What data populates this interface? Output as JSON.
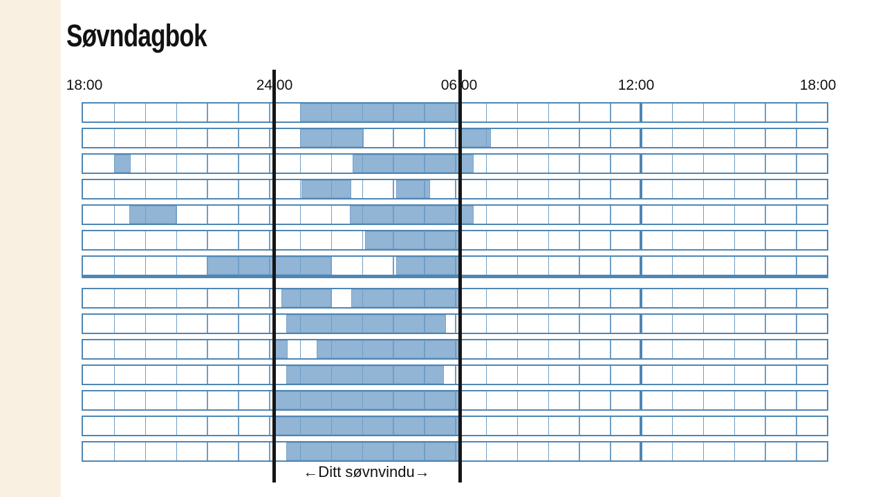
{
  "page": {
    "title": "Søvndagbok",
    "background_color": "#ffffff",
    "left_strip_color": "#faf0e2"
  },
  "chart_data": {
    "type": "heatmap",
    "title": "Søvndagbok",
    "description": "Sleep diary: 14 nights, each row spans 24 hours from 18:00 to 18:00; filled segments = sleep",
    "x_axis": {
      "tick_labels": [
        "18:00",
        "24:00",
        "06:00",
        "12:00",
        "18:00"
      ],
      "tick_hours": [
        0,
        6,
        12,
        18,
        24
      ],
      "hours_total": 24,
      "grid_step_hours": 1
    },
    "rows": [
      {
        "night": 1,
        "sleep_segments_hours_from_1800": [
          [
            7.0,
            12.15
          ]
        ]
      },
      {
        "night": 2,
        "sleep_segments_hours_from_1800": [
          [
            7.0,
            9.05
          ],
          [
            12.15,
            13.15
          ]
        ]
      },
      {
        "night": 3,
        "sleep_segments_hours_from_1800": [
          [
            1.0,
            1.55
          ],
          [
            8.7,
            12.6
          ]
        ]
      },
      {
        "night": 4,
        "sleep_segments_hours_from_1800": [
          [
            7.05,
            8.65
          ],
          [
            10.1,
            11.2
          ]
        ]
      },
      {
        "night": 5,
        "sleep_segments_hours_from_1800": [
          [
            1.5,
            3.0
          ],
          [
            8.6,
            12.6
          ]
        ]
      },
      {
        "night": 6,
        "sleep_segments_hours_from_1800": [
          [
            9.1,
            12.15
          ]
        ]
      },
      {
        "night": 7,
        "sleep_segments_hours_from_1800": [
          [
            4.0,
            8.0
          ],
          [
            10.1,
            12.15
          ]
        ]
      },
      {
        "night": 8,
        "sleep_segments_hours_from_1800": [
          [
            6.4,
            8.0
          ],
          [
            8.65,
            12.15
          ]
        ]
      },
      {
        "night": 9,
        "sleep_segments_hours_from_1800": [
          [
            6.55,
            11.7
          ]
        ]
      },
      {
        "night": 10,
        "sleep_segments_hours_from_1800": [
          [
            6.2,
            6.6
          ],
          [
            7.55,
            12.15
          ]
        ]
      },
      {
        "night": 11,
        "sleep_segments_hours_from_1800": [
          [
            6.55,
            11.65
          ]
        ]
      },
      {
        "night": 12,
        "sleep_segments_hours_from_1800": [
          [
            6.2,
            12.15
          ]
        ]
      },
      {
        "night": 13,
        "sleep_segments_hours_from_1800": [
          [
            6.2,
            12.15
          ]
        ]
      },
      {
        "night": 14,
        "sleep_segments_hours_from_1800": [
          [
            6.55,
            12.15
          ]
        ]
      }
    ],
    "week_separator_after_row": 7,
    "midday_heavy_line_hour": 18,
    "sleep_window": {
      "label": "←Ditt søvnvindu→",
      "start_hour_from_1800": 6.2,
      "end_hour_from_1800": 12.15,
      "start_clock": "24:00",
      "end_clock": "06:00"
    },
    "colors": {
      "sleep_fill": "#92b5d6",
      "sleep_fill_border": "#79a3c8",
      "grid_hour_line": "#6f9ec5",
      "row_border": "#4e86b4",
      "week_separator": "#4e86b4",
      "window_line": "#161616",
      "text": "#111111"
    },
    "legend_position": "none",
    "grid_on": true
  }
}
